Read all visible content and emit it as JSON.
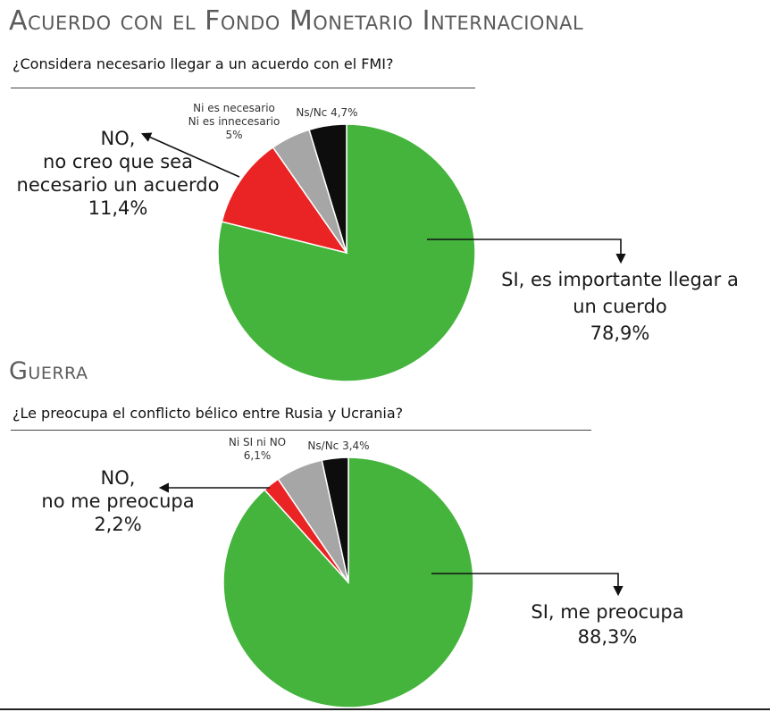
{
  "chart_data": [
    {
      "type": "pie",
      "title": "Acuerdo con el Fondo Monetario Internacional",
      "question": "¿Considera necesario llegar a un acuerdo con el FMI?",
      "slices": [
        {
          "label_lines": [
            "SI, es importante llegar a",
            "un cuerdo",
            "78,9%"
          ],
          "value": 78.9,
          "color": "#44b43c"
        },
        {
          "label_lines": [
            "NO,",
            "no creo que sea",
            "necesario un acuerdo",
            "11,4%"
          ],
          "value": 11.4,
          "color": "#ea2424"
        },
        {
          "label_lines": [
            "Ni es necesario",
            "Ni es innecesario",
            "5%"
          ],
          "value": 5.0,
          "color": "#a6a6a6"
        },
        {
          "label_lines": [
            "Ns/Nc 4,7%"
          ],
          "value": 4.7,
          "color": "#0d0d0d"
        }
      ]
    },
    {
      "type": "pie",
      "title": "Guerra",
      "question": "¿Le preocupa el conflicto bélico entre Rusia y Ucrania?",
      "slices": [
        {
          "label_lines": [
            "SI, me preocupa",
            "88,3%"
          ],
          "value": 88.3,
          "color": "#44b43c"
        },
        {
          "label_lines": [
            "NO,",
            "no me preocupa",
            "2,2%"
          ],
          "value": 2.2,
          "color": "#ea2424"
        },
        {
          "label_lines": [
            "Ni SI ni NO",
            "6,1%"
          ],
          "value": 6.1,
          "color": "#a6a6a6"
        },
        {
          "label_lines": [
            "Ns/Nc 3,4%"
          ],
          "value": 3.4,
          "color": "#0d0d0d"
        }
      ]
    }
  ]
}
